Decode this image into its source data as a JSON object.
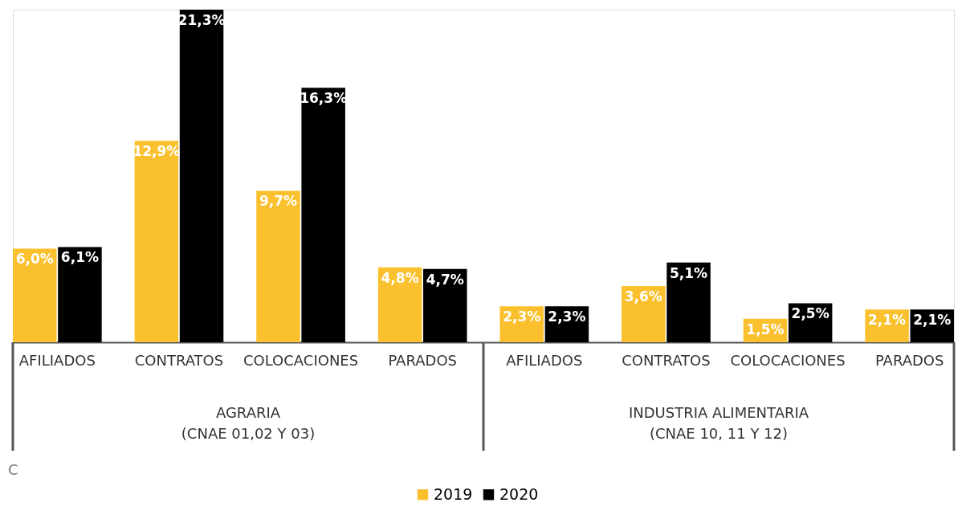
{
  "chart_data": {
    "type": "bar",
    "categories": [
      "AFILIADOS",
      "CONTRATOS",
      "COLOCACIONES",
      "PARADOS",
      "AFILIADOS",
      "CONTRATOS",
      "COLOCACIONES",
      "PARADOS"
    ],
    "series": [
      {
        "name": "2019",
        "color": "#fbc02d",
        "values": [
          6.0,
          12.9,
          9.7,
          4.8,
          2.3,
          3.6,
          1.5,
          2.1
        ],
        "value_labels": [
          "6,0%",
          "12,9%",
          "9,7%",
          "4,8%",
          "2,3%",
          "3,6%",
          "1,5%",
          "2,1%"
        ]
      },
      {
        "name": "2020",
        "color": "#000000",
        "values": [
          6.1,
          21.3,
          16.3,
          4.7,
          2.3,
          5.1,
          2.5,
          2.1
        ],
        "value_labels": [
          "6,1%",
          "21,3%",
          "16,3%",
          "4,7%",
          "2,3%",
          "5,1%",
          "2,5%",
          "2,1%"
        ]
      }
    ],
    "annotations": [
      "AGRARIA\n(CNAE 01,02 Y 03)",
      "INDUSTRIA ALIMENTARIA\n(CNAE 10, 11 Y 12)",
      "C"
    ],
    "legend": "bottom",
    "grid": false
  }
}
